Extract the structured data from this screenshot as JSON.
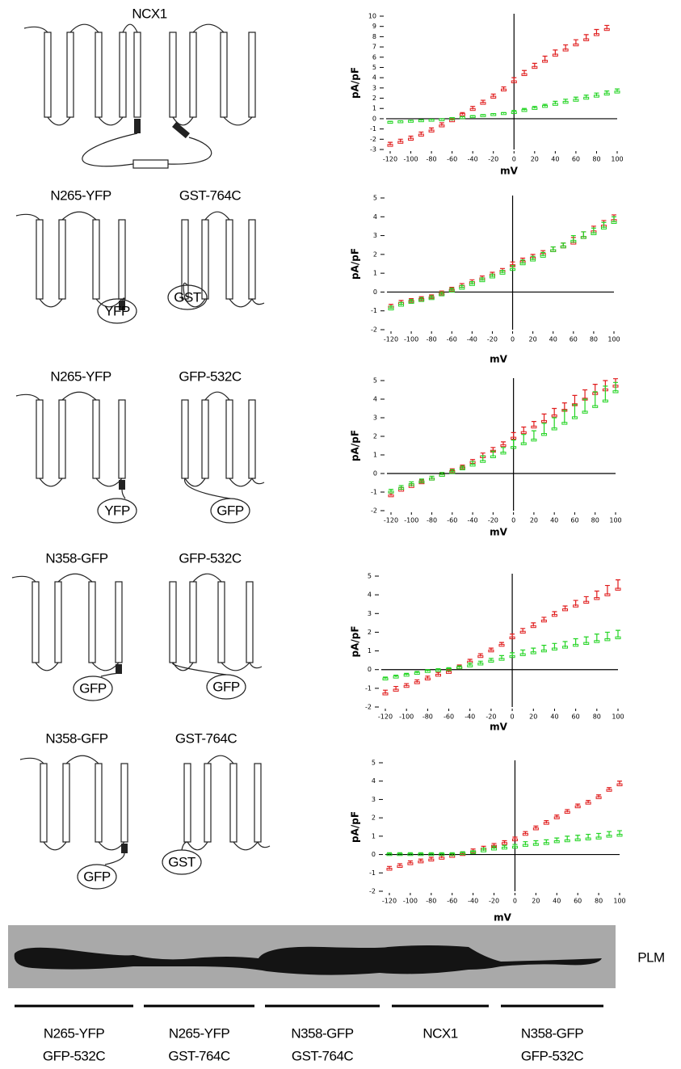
{
  "chart_data": [
    {
      "type": "line",
      "xlabel": "mV",
      "ylabel": "pA/pF",
      "x": [
        -120,
        -110,
        -100,
        -90,
        -80,
        -70,
        -60,
        -50,
        -40,
        -30,
        -20,
        -10,
        0,
        10,
        20,
        30,
        40,
        50,
        60,
        70,
        80,
        90,
        100
      ],
      "xlim": [
        -120,
        100
      ],
      "xticks": [
        -120,
        -100,
        -80,
        -60,
        -40,
        -20,
        0,
        20,
        40,
        60,
        80,
        100
      ],
      "ylim": [
        -3,
        10
      ],
      "yticks": [
        -3,
        -2,
        -1,
        0,
        1,
        2,
        3,
        4,
        5,
        6,
        7,
        8,
        9,
        10
      ],
      "series": [
        {
          "color": "#e01c1c",
          "values": [
            -2.6,
            -2.3,
            -2.0,
            -1.6,
            -1.2,
            -0.7,
            -0.2,
            0.4,
            0.9,
            1.5,
            2.1,
            2.8,
            3.6,
            4.3,
            5.0,
            5.6,
            6.2,
            6.7,
            7.2,
            7.7,
            8.2,
            8.7,
            null
          ],
          "errors": [
            0.3,
            0.3,
            0.3,
            0.3,
            0.3,
            0.3,
            0.2,
            0.2,
            0.3,
            0.3,
            0.3,
            0.3,
            0.4,
            0.4,
            0.4,
            0.5,
            0.5,
            0.5,
            0.5,
            0.5,
            0.5,
            0.4,
            null
          ]
        },
        {
          "color": "#22d422",
          "values": [
            -0.35,
            -0.3,
            -0.25,
            -0.2,
            -0.15,
            -0.1,
            0,
            0.1,
            0.2,
            0.3,
            0.4,
            0.5,
            0.6,
            0.8,
            1.0,
            1.2,
            1.4,
            1.6,
            1.8,
            2.0,
            2.2,
            2.4,
            2.6
          ],
          "errors": [
            0.1,
            0.1,
            0.1,
            0.1,
            0.1,
            0.1,
            0.1,
            0.1,
            0.1,
            0.1,
            0.1,
            0.1,
            0.2,
            0.2,
            0.2,
            0.2,
            0.3,
            0.3,
            0.3,
            0.3,
            0.3,
            0.3,
            0.3
          ]
        }
      ]
    },
    {
      "type": "line",
      "xlabel": "mV",
      "ylabel": "pA/pF",
      "x": [
        -120,
        -110,
        -100,
        -90,
        -80,
        -70,
        -60,
        -50,
        -40,
        -30,
        -20,
        -10,
        0,
        10,
        20,
        30,
        40,
        50,
        60,
        70,
        80,
        90,
        100
      ],
      "xlim": [
        -120,
        100
      ],
      "xticks": [
        -120,
        -100,
        -80,
        -60,
        -40,
        -20,
        0,
        20,
        40,
        60,
        80,
        100
      ],
      "ylim": [
        -2,
        5
      ],
      "yticks": [
        -2,
        -1,
        0,
        1,
        2,
        3,
        4,
        5
      ],
      "series": [
        {
          "color": "#e01c1c",
          "values": [
            -0.8,
            -0.6,
            -0.5,
            -0.4,
            -0.3,
            -0.1,
            0.1,
            0.3,
            0.5,
            0.7,
            0.9,
            1.1,
            1.4,
            1.6,
            1.8,
            2.0,
            2.2,
            2.4,
            2.6,
            2.9,
            3.2,
            3.5,
            3.8
          ],
          "errors": [
            0.15,
            0.15,
            0.15,
            0.15,
            0.15,
            0.15,
            0.15,
            0.15,
            0.15,
            0.15,
            0.15,
            0.15,
            0.2,
            0.2,
            0.2,
            0.2,
            0.2,
            0.2,
            0.3,
            0.3,
            0.3,
            0.3,
            0.3
          ]
        },
        {
          "color": "#22d422",
          "values": [
            -0.9,
            -0.7,
            -0.55,
            -0.45,
            -0.35,
            -0.15,
            0.05,
            0.2,
            0.4,
            0.6,
            0.8,
            1.0,
            1.2,
            1.5,
            1.7,
            1.9,
            2.2,
            2.4,
            2.7,
            2.9,
            3.1,
            3.4,
            3.7
          ],
          "errors": [
            0.15,
            0.15,
            0.15,
            0.15,
            0.15,
            0.15,
            0.15,
            0.15,
            0.15,
            0.15,
            0.15,
            0.15,
            0.2,
            0.2,
            0.2,
            0.2,
            0.2,
            0.2,
            0.3,
            0.3,
            0.3,
            0.3,
            0.3
          ]
        }
      ]
    },
    {
      "type": "line",
      "xlabel": "mV",
      "ylabel": "pA/pF",
      "x": [
        -120,
        -110,
        -100,
        -90,
        -80,
        -70,
        -60,
        -50,
        -40,
        -30,
        -20,
        -10,
        0,
        10,
        20,
        30,
        40,
        50,
        60,
        70,
        80,
        90,
        100
      ],
      "xlim": [
        -120,
        100
      ],
      "xticks": [
        -120,
        -100,
        -80,
        -60,
        -40,
        -20,
        0,
        20,
        40,
        60,
        80,
        100
      ],
      "ylim": [
        -2,
        5
      ],
      "yticks": [
        -2,
        -1,
        0,
        1,
        2,
        3,
        4,
        5
      ],
      "series": [
        {
          "color": "#e01c1c",
          "values": [
            -1.2,
            -0.9,
            -0.7,
            -0.5,
            -0.3,
            -0.1,
            0.1,
            0.3,
            0.6,
            0.9,
            1.2,
            1.5,
            1.9,
            2.2,
            2.5,
            2.8,
            3.1,
            3.4,
            3.7,
            4.0,
            4.3,
            4.5,
            4.7
          ],
          "errors": [
            0.15,
            0.15,
            0.15,
            0.15,
            0.15,
            0.15,
            0.15,
            0.15,
            0.15,
            0.2,
            0.2,
            0.2,
            0.3,
            0.3,
            0.3,
            0.4,
            0.4,
            0.4,
            0.5,
            0.5,
            0.5,
            0.5,
            0.4
          ]
        },
        {
          "color": "#22d422",
          "values": [
            -1.0,
            -0.8,
            -0.6,
            -0.45,
            -0.3,
            -0.1,
            0.05,
            0.25,
            0.45,
            0.65,
            0.9,
            1.1,
            1.4,
            1.6,
            1.8,
            2.1,
            2.4,
            2.7,
            3.0,
            3.3,
            3.6,
            3.9,
            4.4
          ],
          "errors": [
            0.15,
            0.15,
            0.15,
            0.15,
            0.15,
            0.15,
            0.15,
            0.15,
            0.2,
            0.3,
            0.3,
            0.3,
            0.4,
            0.5,
            0.5,
            0.6,
            0.6,
            0.7,
            0.7,
            0.7,
            0.8,
            0.8,
            0.5
          ]
        }
      ]
    },
    {
      "type": "line",
      "xlabel": "mV",
      "ylabel": "pA/pF",
      "x": [
        -120,
        -110,
        -100,
        -90,
        -80,
        -70,
        -60,
        -50,
        -40,
        -30,
        -20,
        -10,
        0,
        10,
        20,
        30,
        40,
        50,
        60,
        70,
        80,
        90,
        100
      ],
      "xlim": [
        -120,
        100
      ],
      "xticks": [
        -120,
        -100,
        -80,
        -60,
        -40,
        -20,
        0,
        20,
        40,
        60,
        80,
        100
      ],
      "ylim": [
        -2,
        5
      ],
      "yticks": [
        -2,
        -1,
        0,
        1,
        2,
        3,
        4,
        5
      ],
      "series": [
        {
          "color": "#e01c1c",
          "values": [
            -1.3,
            -1.1,
            -0.9,
            -0.7,
            -0.5,
            -0.3,
            -0.15,
            0.1,
            0.4,
            0.7,
            1.0,
            1.3,
            1.7,
            2.0,
            2.3,
            2.6,
            2.9,
            3.2,
            3.4,
            3.6,
            3.8,
            4.0,
            4.3
          ],
          "errors": [
            0.2,
            0.2,
            0.15,
            0.15,
            0.15,
            0.15,
            0.15,
            0.15,
            0.15,
            0.15,
            0.15,
            0.15,
            0.2,
            0.2,
            0.2,
            0.2,
            0.2,
            0.2,
            0.3,
            0.3,
            0.4,
            0.5,
            0.5
          ]
        },
        {
          "color": "#22d422",
          "values": [
            -0.5,
            -0.4,
            -0.3,
            -0.2,
            -0.1,
            -0.05,
            0,
            0.1,
            0.2,
            0.3,
            0.45,
            0.55,
            0.7,
            0.8,
            0.9,
            1.0,
            1.1,
            1.2,
            1.3,
            1.4,
            1.5,
            1.6,
            1.7
          ],
          "errors": [
            0.1,
            0.1,
            0.1,
            0.1,
            0.1,
            0.1,
            0.1,
            0.1,
            0.15,
            0.15,
            0.15,
            0.2,
            0.2,
            0.25,
            0.25,
            0.3,
            0.3,
            0.3,
            0.35,
            0.35,
            0.4,
            0.4,
            0.4
          ]
        }
      ]
    },
    {
      "type": "line",
      "xlabel": "mV",
      "ylabel": "pA/pF",
      "x": [
        -120,
        -110,
        -100,
        -90,
        -80,
        -70,
        -60,
        -50,
        -40,
        -30,
        -20,
        -10,
        0,
        10,
        20,
        30,
        40,
        50,
        60,
        70,
        80,
        90,
        100
      ],
      "xlim": [
        -120,
        100
      ],
      "xticks": [
        -120,
        -100,
        -80,
        -60,
        -40,
        -20,
        0,
        20,
        40,
        60,
        80,
        100
      ],
      "ylim": [
        -2,
        5
      ],
      "yticks": [
        -2,
        -1,
        0,
        1,
        2,
        3,
        4,
        5
      ],
      "series": [
        {
          "color": "#e01c1c",
          "values": [
            -0.8,
            -0.65,
            -0.5,
            -0.4,
            -0.3,
            -0.2,
            -0.1,
            0,
            0.15,
            0.3,
            0.45,
            0.6,
            0.8,
            1.1,
            1.4,
            1.7,
            2.0,
            2.3,
            2.6,
            2.8,
            3.1,
            3.5,
            3.8
          ],
          "errors": [
            0.15,
            0.15,
            0.15,
            0.15,
            0.15,
            0.15,
            0.15,
            0.15,
            0.15,
            0.15,
            0.15,
            0.15,
            0.15,
            0.15,
            0.15,
            0.15,
            0.15,
            0.15,
            0.15,
            0.15,
            0.15,
            0.15,
            0.2
          ]
        },
        {
          "color": "#22d422",
          "values": [
            0,
            0,
            0,
            0,
            0,
            0,
            0,
            0.05,
            0.1,
            0.2,
            0.3,
            0.35,
            0.4,
            0.5,
            0.55,
            0.6,
            0.7,
            0.75,
            0.8,
            0.85,
            0.9,
            1.0,
            1.05
          ],
          "errors": [
            0.1,
            0.1,
            0.1,
            0.1,
            0.1,
            0.1,
            0.1,
            0.1,
            0.1,
            0.15,
            0.15,
            0.15,
            0.15,
            0.2,
            0.2,
            0.2,
            0.2,
            0.25,
            0.25,
            0.25,
            0.25,
            0.25,
            0.25
          ]
        }
      ]
    }
  ],
  "diagrams": [
    {
      "constructs": [
        "NCX1"
      ]
    },
    {
      "constructs": [
        "N265-YFP",
        "GST-764C"
      ],
      "tags": [
        "YFP",
        "GST"
      ]
    },
    {
      "constructs": [
        "N265-YFP",
        "GFP-532C"
      ],
      "tags": [
        "YFP",
        "GFP"
      ]
    },
    {
      "constructs": [
        "N358-GFP",
        "GFP-532C"
      ],
      "tags": [
        "GFP",
        "GFP"
      ]
    },
    {
      "constructs": [
        "N358-GFP",
        "GST-764C"
      ],
      "tags": [
        "GFP",
        "GST"
      ]
    }
  ],
  "blot": {
    "label": "PLM",
    "lanes": [
      [
        "N265-YFP",
        "GFP-532C"
      ],
      [
        "N265-YFP",
        "GST-764C"
      ],
      [
        "N358-GFP",
        "GST-764C"
      ],
      [
        "NCX1"
      ],
      [
        "N358-GFP",
        "GFP-532C"
      ]
    ]
  }
}
